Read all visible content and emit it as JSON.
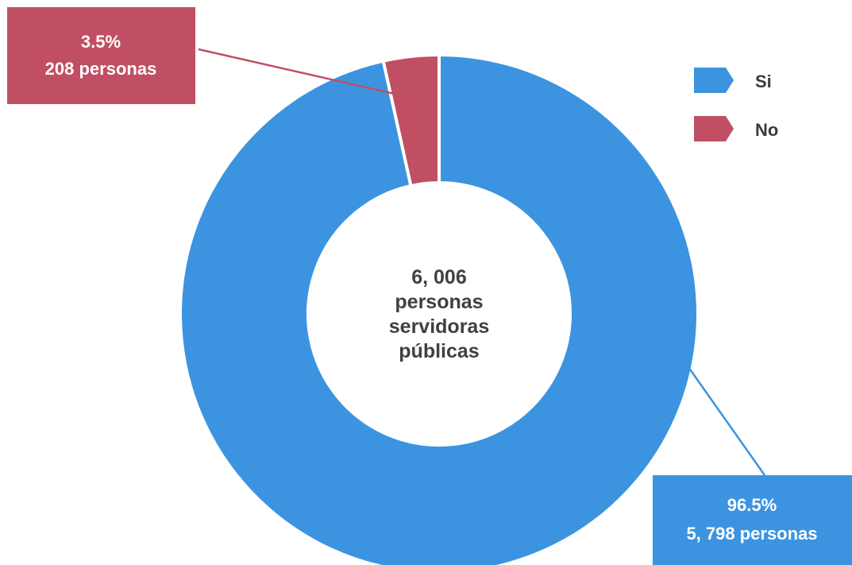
{
  "chart_data": {
    "type": "pie",
    "donut": true,
    "total_label": [
      "6, 006",
      "personas",
      "servidoras",
      "públicas"
    ],
    "slices": [
      {
        "name": "Si",
        "value": 5798,
        "percent": 96.5,
        "color": "#3c94e0",
        "label_percent": "96.5%",
        "label_count": "5, 798 personas"
      },
      {
        "name": "No",
        "value": 208,
        "percent": 3.5,
        "color": "#c14f63",
        "label_percent": "3.5%",
        "label_count": "208 personas"
      }
    ],
    "legend": {
      "placement": "top-right",
      "items": [
        {
          "name": "Si",
          "color": "#3c94e0"
        },
        {
          "name": "No",
          "color": "#c14f63"
        }
      ]
    }
  }
}
